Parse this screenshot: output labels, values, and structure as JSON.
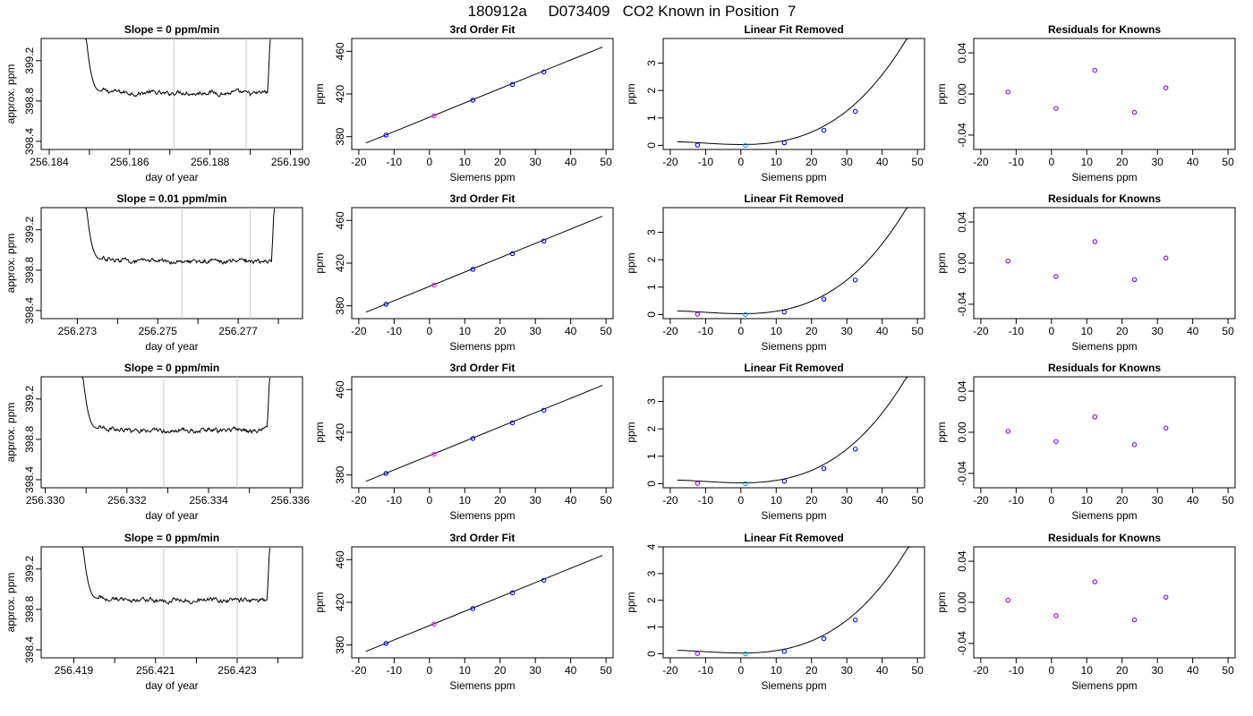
{
  "page_title": "180912a     D073409   CO2 Known in Position  7",
  "chart_data": [
    {
      "type": "line",
      "title": "Slope =  0  ppm/min",
      "xlabel": "day of year",
      "ylabel": "approx. ppm",
      "xlim": [
        256.1838,
        256.1903
      ],
      "ylim": [
        398.32,
        399.42
      ],
      "xticks": [
        256.184,
        256.186,
        256.188,
        256.19
      ],
      "xtick_labels": [
        "256.184",
        "256.186",
        "256.188",
        "256.190"
      ],
      "xticks_minor": [
        256.185,
        256.187,
        256.189
      ],
      "yticks": [
        398.4,
        398.8,
        399.2
      ],
      "ytick_labels": [
        "398.4",
        "398.8",
        "399.2"
      ],
      "vlines": [
        256.1871,
        256.1889
      ],
      "trace": {
        "x0": 256.1849,
        "x1": 256.1895,
        "level": 398.88
      }
    },
    {
      "type": "line",
      "title": "3rd Order Fit",
      "xlabel": "Siemens ppm",
      "ylabel": "ppm",
      "xlim": [
        -22,
        52
      ],
      "ylim": [
        368,
        472
      ],
      "xticks": [
        -20,
        -10,
        0,
        10,
        20,
        30,
        40,
        50
      ],
      "xtick_labels": [
        "-20",
        "-10",
        "0",
        "10",
        "20",
        "30",
        "40",
        "50"
      ],
      "yticks": [
        380,
        420,
        460
      ],
      "ytick_labels": [
        "380",
        "420",
        "460"
      ],
      "fit_line": [
        [
          -18,
          374
        ],
        [
          49,
          464
        ]
      ],
      "points": [
        {
          "x": -12.3,
          "y": 381.5,
          "color": "#0000ff"
        },
        {
          "x": 1.3,
          "y": 399.5,
          "color": "#ff00ff"
        },
        {
          "x": 12.3,
          "y": 414.2,
          "color": "#0000ff"
        },
        {
          "x": 23.5,
          "y": 428.9,
          "color": "#0000ff"
        },
        {
          "x": 32.4,
          "y": 440.7,
          "color": "#0000ff"
        }
      ]
    },
    {
      "type": "line",
      "title": "Linear Fit Removed",
      "xlabel": "Siemens ppm",
      "ylabel": "ppm",
      "xlim": [
        -22,
        52
      ],
      "ylim": [
        -0.15,
        3.9
      ],
      "xticks": [
        -20,
        -10,
        0,
        10,
        20,
        30,
        40,
        50
      ],
      "xtick_labels": [
        "-20",
        "-10",
        "0",
        "10",
        "20",
        "30",
        "40",
        "50"
      ],
      "yticks": [
        0,
        1,
        2,
        3
      ],
      "ytick_labels": [
        "0",
        "1",
        "2",
        "3"
      ],
      "curve": {
        "x0": -18,
        "x1": 49,
        "coef": [
          0.03,
          -0.0003,
          0.0007,
          2.25e-05
        ]
      },
      "points": [
        {
          "x": -12.3,
          "y": 0.01,
          "color": "#0000ff"
        },
        {
          "x": 1.3,
          "y": 0.0,
          "color": "#00aaff"
        },
        {
          "x": 12.3,
          "y": 0.09,
          "color": "#0000ff"
        },
        {
          "x": 23.5,
          "y": 0.55,
          "color": "#0000ff"
        },
        {
          "x": 32.4,
          "y": 1.24,
          "color": "#0000ff"
        }
      ]
    },
    {
      "type": "scatter",
      "title": "Residuals for Knowns",
      "xlabel": "Siemens ppm",
      "ylabel": "ppm",
      "xlim": [
        -22,
        52
      ],
      "ylim": [
        -0.054,
        0.054
      ],
      "xticks": [
        -20,
        -10,
        0,
        10,
        20,
        30,
        40,
        50
      ],
      "xtick_labels": [
        "-20",
        "-10",
        "0",
        "10",
        "20",
        "30",
        "40",
        "50"
      ],
      "yticks": [
        -0.04,
        0.0,
        0.04
      ],
      "ytick_labels": [
        "-0.04",
        "0.00",
        "0.04"
      ],
      "points": [
        {
          "x": -12.3,
          "y": 0.002,
          "color": "#8800ff"
        },
        {
          "x": 1.3,
          "y": -0.014,
          "color": "#8800ff"
        },
        {
          "x": 12.3,
          "y": 0.023,
          "color": "#8800ff"
        },
        {
          "x": 23.5,
          "y": -0.018,
          "color": "#8800ff"
        },
        {
          "x": 32.4,
          "y": 0.006,
          "color": "#8800ff"
        }
      ]
    },
    {
      "type": "line",
      "title": "Slope =  0.01  ppm/min",
      "xlabel": "day of year",
      "ylabel": "approx. ppm",
      "xlim": [
        256.2721,
        256.2786
      ],
      "ylim": [
        398.32,
        399.42
      ],
      "xticks": [
        256.273,
        256.275,
        256.277
      ],
      "xtick_labels": [
        "256.273",
        "256.275",
        "256.277"
      ],
      "xticks_minor": [
        256.274,
        256.276,
        256.278
      ],
      "yticks": [
        398.4,
        398.8,
        399.2
      ],
      "ytick_labels": [
        "398.4",
        "398.8",
        "399.2"
      ],
      "vlines": [
        256.2756,
        256.2773
      ],
      "trace": {
        "x0": 256.2732,
        "x1": 256.2779,
        "level": 398.89
      }
    },
    {
      "type": "line",
      "title": "3rd Order Fit",
      "xlabel": "Siemens ppm",
      "ylabel": "ppm",
      "xlim": [
        -22,
        52
      ],
      "ylim": [
        368,
        472
      ],
      "xticks": [
        -20,
        -10,
        0,
        10,
        20,
        30,
        40,
        50
      ],
      "xtick_labels": [
        "-20",
        "-10",
        "0",
        "10",
        "20",
        "30",
        "40",
        "50"
      ],
      "yticks": [
        380,
        420,
        460
      ],
      "ytick_labels": [
        "380",
        "420",
        "460"
      ],
      "fit_line": [
        [
          -18,
          374
        ],
        [
          49,
          464
        ]
      ],
      "points": [
        {
          "x": -12.3,
          "y": 381.5,
          "color": "#0000ff"
        },
        {
          "x": 1.3,
          "y": 399.5,
          "color": "#ff00ff"
        },
        {
          "x": 12.3,
          "y": 414.2,
          "color": "#0000ff"
        },
        {
          "x": 23.5,
          "y": 428.9,
          "color": "#0000ff"
        },
        {
          "x": 32.4,
          "y": 440.7,
          "color": "#0000ff"
        }
      ]
    },
    {
      "type": "line",
      "title": "Linear Fit Removed",
      "xlabel": "Siemens ppm",
      "ylabel": "ppm",
      "xlim": [
        -22,
        52
      ],
      "ylim": [
        -0.15,
        3.9
      ],
      "xticks": [
        -20,
        -10,
        0,
        10,
        20,
        30,
        40,
        50
      ],
      "xtick_labels": [
        "-20",
        "-10",
        "0",
        "10",
        "20",
        "30",
        "40",
        "50"
      ],
      "yticks": [
        0,
        1,
        2,
        3
      ],
      "ytick_labels": [
        "0",
        "1",
        "2",
        "3"
      ],
      "curve": {
        "x0": -18,
        "x1": 49,
        "coef": [
          0.03,
          -0.0003,
          0.0007,
          2.25e-05
        ]
      },
      "points": [
        {
          "x": -12.3,
          "y": 0.01,
          "color": "#8800ff"
        },
        {
          "x": 1.3,
          "y": 0.0,
          "color": "#00aaff"
        },
        {
          "x": 12.3,
          "y": 0.09,
          "color": "#0000ff"
        },
        {
          "x": 23.5,
          "y": 0.56,
          "color": "#0000ff"
        },
        {
          "x": 32.4,
          "y": 1.26,
          "color": "#0000ff"
        }
      ]
    },
    {
      "type": "scatter",
      "title": "Residuals for Knowns",
      "xlabel": "Siemens ppm",
      "ylabel": "ppm",
      "xlim": [
        -22,
        52
      ],
      "ylim": [
        -0.054,
        0.054
      ],
      "xticks": [
        -20,
        -10,
        0,
        10,
        20,
        30,
        40,
        50
      ],
      "xtick_labels": [
        "-20",
        "-10",
        "0",
        "10",
        "20",
        "30",
        "40",
        "50"
      ],
      "yticks": [
        -0.04,
        0.0,
        0.04
      ],
      "ytick_labels": [
        "-0.04",
        "0.00",
        "0.04"
      ],
      "points": [
        {
          "x": -12.3,
          "y": 0.002,
          "color": "#8800ff"
        },
        {
          "x": 1.3,
          "y": -0.013,
          "color": "#8800ff"
        },
        {
          "x": 12.3,
          "y": 0.021,
          "color": "#8800ff"
        },
        {
          "x": 23.5,
          "y": -0.016,
          "color": "#8800ff"
        },
        {
          "x": 32.4,
          "y": 0.005,
          "color": "#8800ff"
        }
      ]
    },
    {
      "type": "line",
      "title": "Slope =  0  ppm/min",
      "xlabel": "day of year",
      "ylabel": "approx. ppm",
      "xlim": [
        256.3299,
        256.3363
      ],
      "ylim": [
        398.32,
        399.42
      ],
      "xticks": [
        256.33,
        256.332,
        256.334,
        256.336
      ],
      "xtick_labels": [
        "256.330",
        "256.332",
        "256.334",
        "256.336"
      ],
      "xticks_minor": [
        256.331,
        256.333,
        256.335
      ],
      "yticks": [
        398.4,
        398.8,
        399.2
      ],
      "ytick_labels": [
        "398.4",
        "398.8",
        "399.2"
      ],
      "vlines": [
        256.3329,
        256.3347
      ],
      "trace": {
        "x0": 256.3309,
        "x1": 256.3355,
        "level": 398.89
      }
    },
    {
      "type": "line",
      "title": "3rd Order Fit",
      "xlabel": "Siemens ppm",
      "ylabel": "ppm",
      "xlim": [
        -22,
        52
      ],
      "ylim": [
        368,
        472
      ],
      "xticks": [
        -20,
        -10,
        0,
        10,
        20,
        30,
        40,
        50
      ],
      "xtick_labels": [
        "-20",
        "-10",
        "0",
        "10",
        "20",
        "30",
        "40",
        "50"
      ],
      "yticks": [
        380,
        420,
        460
      ],
      "ytick_labels": [
        "380",
        "420",
        "460"
      ],
      "fit_line": [
        [
          -18,
          374
        ],
        [
          49,
          464
        ]
      ],
      "points": [
        {
          "x": -12.3,
          "y": 381.5,
          "color": "#0000ff"
        },
        {
          "x": 1.3,
          "y": 399.5,
          "color": "#ff00ff"
        },
        {
          "x": 12.3,
          "y": 414.2,
          "color": "#0000ff"
        },
        {
          "x": 23.5,
          "y": 428.9,
          "color": "#0000ff"
        },
        {
          "x": 32.4,
          "y": 440.7,
          "color": "#0000ff"
        }
      ]
    },
    {
      "type": "line",
      "title": "Linear Fit Removed",
      "xlabel": "Siemens ppm",
      "ylabel": "ppm",
      "xlim": [
        -22,
        52
      ],
      "ylim": [
        -0.15,
        3.9
      ],
      "xticks": [
        -20,
        -10,
        0,
        10,
        20,
        30,
        40,
        50
      ],
      "xtick_labels": [
        "-20",
        "-10",
        "0",
        "10",
        "20",
        "30",
        "40",
        "50"
      ],
      "yticks": [
        0,
        1,
        2,
        3
      ],
      "ytick_labels": [
        "0",
        "1",
        "2",
        "3"
      ],
      "curve": {
        "x0": -18,
        "x1": 49,
        "coef": [
          0.03,
          -0.0003,
          0.0007,
          2.25e-05
        ]
      },
      "points": [
        {
          "x": -12.3,
          "y": 0.01,
          "color": "#8800ff"
        },
        {
          "x": 1.3,
          "y": 0.0,
          "color": "#00aaff"
        },
        {
          "x": 12.3,
          "y": 0.09,
          "color": "#0000ff"
        },
        {
          "x": 23.5,
          "y": 0.55,
          "color": "#0000ff"
        },
        {
          "x": 32.4,
          "y": 1.26,
          "color": "#0000ff"
        }
      ]
    },
    {
      "type": "scatter",
      "title": "Residuals for Knowns",
      "xlabel": "Siemens ppm",
      "ylabel": "ppm",
      "xlim": [
        -22,
        52
      ],
      "ylim": [
        -0.054,
        0.054
      ],
      "xticks": [
        -20,
        -10,
        0,
        10,
        20,
        30,
        40,
        50
      ],
      "xtick_labels": [
        "-20",
        "-10",
        "0",
        "10",
        "20",
        "30",
        "40",
        "50"
      ],
      "yticks": [
        -0.04,
        0.0,
        0.04
      ],
      "ytick_labels": [
        "-0.04",
        "0.00",
        "0.04"
      ],
      "points": [
        {
          "x": -12.3,
          "y": 0.001,
          "color": "#8800ff"
        },
        {
          "x": 1.3,
          "y": -0.009,
          "color": "#8800ff"
        },
        {
          "x": 12.3,
          "y": 0.015,
          "color": "#8800ff"
        },
        {
          "x": 23.5,
          "y": -0.012,
          "color": "#8800ff"
        },
        {
          "x": 32.4,
          "y": 0.004,
          "color": "#8800ff"
        }
      ]
    },
    {
      "type": "line",
      "title": "Slope =  0  ppm/min",
      "xlabel": "day of year",
      "ylabel": "approx. ppm",
      "xlim": [
        256.4182,
        256.4246
      ],
      "ylim": [
        398.32,
        399.42
      ],
      "xticks": [
        256.419,
        256.421,
        256.423
      ],
      "xtick_labels": [
        "256.419",
        "256.421",
        "256.423"
      ],
      "xticks_minor": [
        256.42,
        256.422,
        256.424
      ],
      "yticks": [
        398.4,
        398.8,
        399.2
      ],
      "ytick_labels": [
        "398.4",
        "398.8",
        "399.2"
      ],
      "vlines": [
        256.4212,
        256.423
      ],
      "trace": {
        "x0": 256.4192,
        "x1": 256.4238,
        "level": 398.89
      }
    },
    {
      "type": "line",
      "title": "3rd Order Fit",
      "xlabel": "Siemens ppm",
      "ylabel": "ppm",
      "xlim": [
        -22,
        52
      ],
      "ylim": [
        368,
        472
      ],
      "xticks": [
        -20,
        -10,
        0,
        10,
        20,
        30,
        40,
        50
      ],
      "xtick_labels": [
        "-20",
        "-10",
        "0",
        "10",
        "20",
        "30",
        "40",
        "50"
      ],
      "yticks": [
        380,
        420,
        460
      ],
      "ytick_labels": [
        "380",
        "420",
        "460"
      ],
      "fit_line": [
        [
          -18,
          374
        ],
        [
          49,
          464
        ]
      ],
      "points": [
        {
          "x": -12.3,
          "y": 381.5,
          "color": "#0000ff"
        },
        {
          "x": 1.3,
          "y": 399.5,
          "color": "#ff00ff"
        },
        {
          "x": 12.3,
          "y": 414.2,
          "color": "#0000ff"
        },
        {
          "x": 23.5,
          "y": 428.9,
          "color": "#0000ff"
        },
        {
          "x": 32.4,
          "y": 440.7,
          "color": "#0000ff"
        }
      ]
    },
    {
      "type": "line",
      "title": "Linear Fit Removed",
      "xlabel": "Siemens ppm",
      "ylabel": "ppm",
      "xlim": [
        -22,
        52
      ],
      "ylim": [
        -0.15,
        4.0
      ],
      "xticks": [
        -20,
        -10,
        0,
        10,
        20,
        30,
        40,
        50
      ],
      "xtick_labels": [
        "-20",
        "-10",
        "0",
        "10",
        "20",
        "30",
        "40",
        "50"
      ],
      "yticks": [
        0,
        1,
        2,
        3,
        4
      ],
      "ytick_labels": [
        "0",
        "1",
        "2",
        "3",
        "4"
      ],
      "curve": {
        "x0": -18,
        "x1": 49,
        "coef": [
          0.03,
          -0.0003,
          0.0007,
          2.25e-05
        ]
      },
      "points": [
        {
          "x": -12.3,
          "y": 0.01,
          "color": "#8800ff"
        },
        {
          "x": 1.3,
          "y": 0.0,
          "color": "#00aaff"
        },
        {
          "x": 12.3,
          "y": 0.09,
          "color": "#0000ff"
        },
        {
          "x": 23.5,
          "y": 0.57,
          "color": "#0000ff"
        },
        {
          "x": 32.4,
          "y": 1.27,
          "color": "#0000ff"
        }
      ]
    },
    {
      "type": "scatter",
      "title": "Residuals for Knowns",
      "xlabel": "Siemens ppm",
      "ylabel": "ppm",
      "xlim": [
        -22,
        52
      ],
      "ylim": [
        -0.054,
        0.054
      ],
      "xticks": [
        -20,
        -10,
        0,
        10,
        20,
        30,
        40,
        50
      ],
      "xtick_labels": [
        "-20",
        "-10",
        "0",
        "10",
        "20",
        "30",
        "40",
        "50"
      ],
      "yticks": [
        -0.04,
        0.0,
        0.04
      ],
      "ytick_labels": [
        "-0.04",
        "0.00",
        "0.04"
      ],
      "points": [
        {
          "x": -12.3,
          "y": 0.002,
          "color": "#8800ff"
        },
        {
          "x": 1.3,
          "y": -0.013,
          "color": "#8800ff"
        },
        {
          "x": 12.3,
          "y": 0.02,
          "color": "#8800ff"
        },
        {
          "x": 23.5,
          "y": -0.017,
          "color": "#8800ff"
        },
        {
          "x": 32.4,
          "y": 0.005,
          "color": "#8800ff"
        }
      ]
    }
  ]
}
